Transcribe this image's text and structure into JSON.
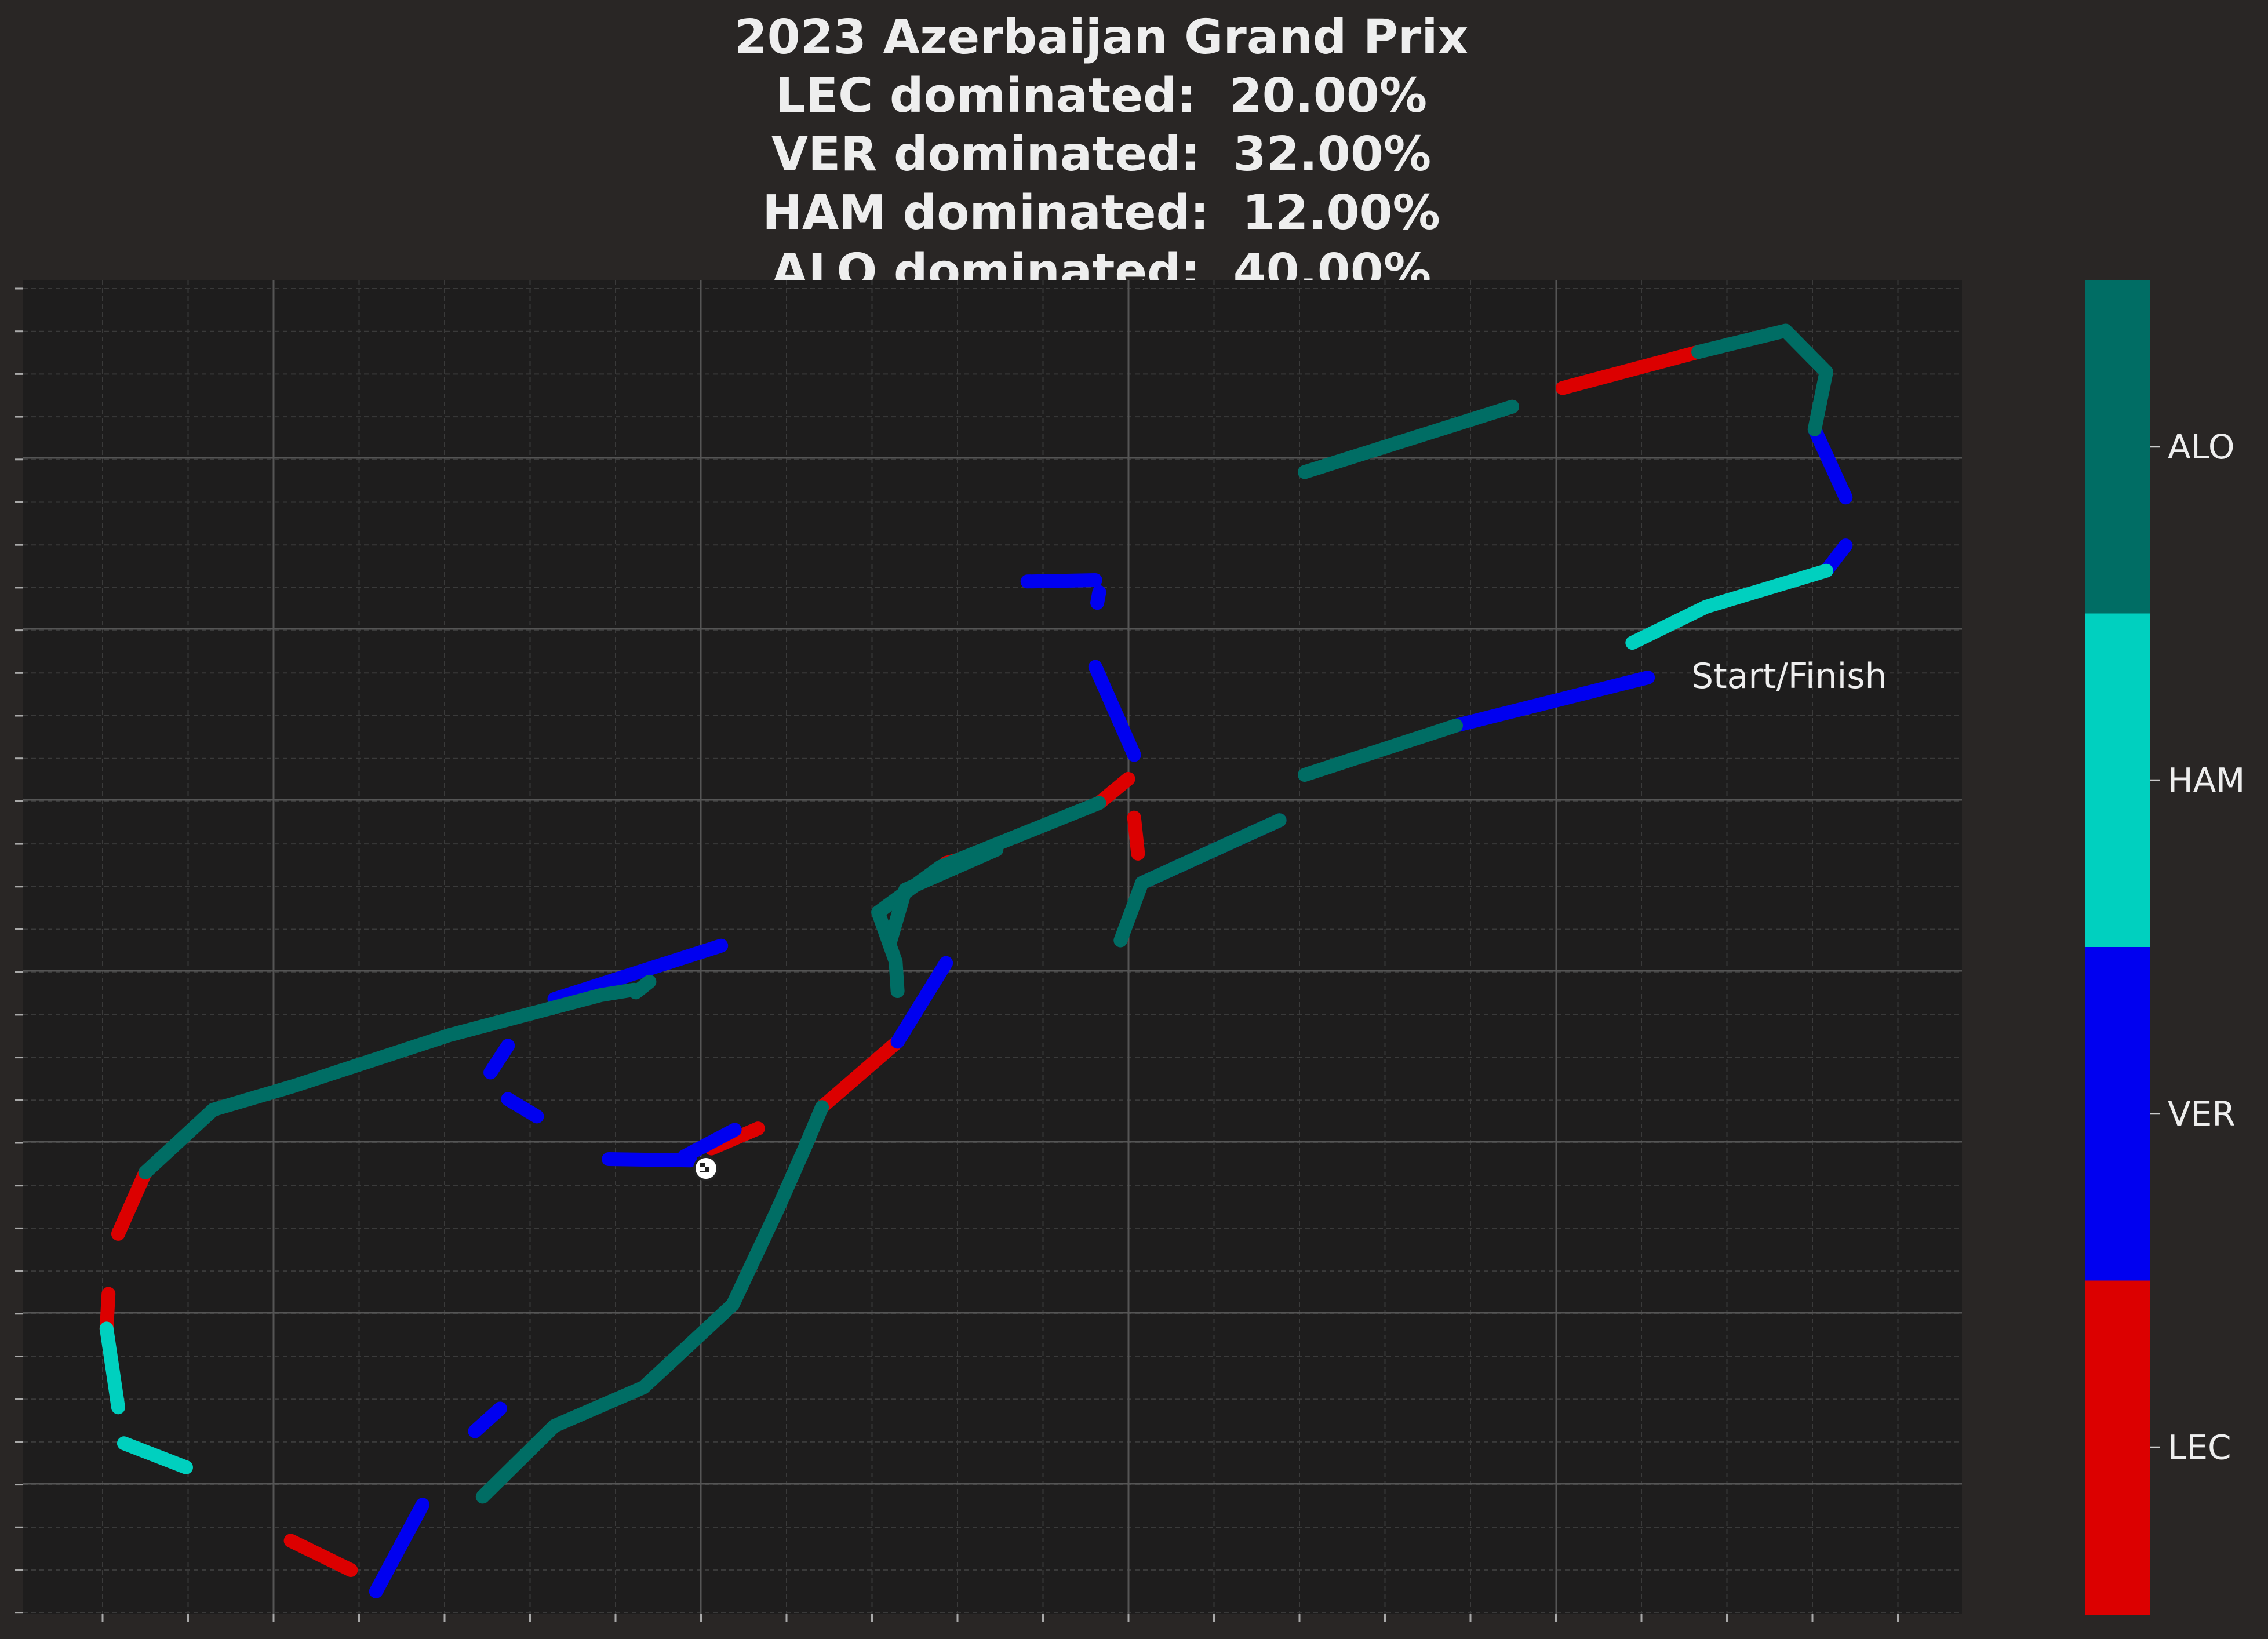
{
  "chart_data": {
    "type": "line",
    "title": [
      "2023 Azerbaijan Grand Prix",
      "LEC dominated:  20.00%",
      "VER dominated:  32.00%",
      "HAM dominated:  12.00%",
      "ALO dominated:  40.00%"
    ],
    "xlabel": "",
    "ylabel": "",
    "grid": true,
    "xlim": [
      0,
      1000
    ],
    "ylim": [
      0,
      1000
    ],
    "annotation": "Start/Finish",
    "legend": "colorbar-right",
    "colorbar": {
      "labels": [
        "ALO",
        "HAM",
        "VER",
        "LEC"
      ],
      "colors": [
        "#006d64",
        "#00d0bf",
        "#0000f0",
        "#dc0000"
      ]
    },
    "series": [
      {
        "name": "LEC",
        "color": "#dc0000",
        "segments": [
          [
            [
              864,
              946
            ],
            [
              794,
              919
            ]
          ],
          [
            [
              768,
              905
            ],
            [
              768,
              905
            ]
          ],
          [
            [
              575,
              570
            ],
            [
              573,
              597
            ]
          ],
          [
            [
              570,
              626
            ],
            [
              555,
              608
            ]
          ],
          [
            [
              502,
              573
            ],
            [
              476,
              563
            ]
          ],
          [
            [
              451,
              429
            ],
            [
              412,
              380
            ]
          ],
          [
            [
              379,
              364
            ],
            [
              355,
              349
            ]
          ],
          [
            [
              63,
              331
            ],
            [
              49,
              285
            ]
          ],
          [
            [
              44,
              240
            ],
            [
              43,
              214
            ]
          ],
          [
            [
              138,
              55
            ],
            [
              169,
              33
            ]
          ]
        ]
      },
      {
        "name": "VER",
        "color": "#0000f0",
        "segments": [
          [
            [
              924,
              888
            ],
            [
              940,
              837
            ]
          ],
          [
            [
              940,
              801
            ],
            [
              930,
              782
            ]
          ],
          [
            [
              838,
              702
            ],
            [
              739,
              666
            ]
          ],
          [
            [
              648,
              595
            ],
            [
              577,
              548
            ]
          ],
          [
            [
              573,
              644
            ],
            [
              553,
              710
            ]
          ],
          [
            [
              554,
              758
            ],
            [
              555,
              766
            ]
          ],
          [
            [
              553,
              775
            ],
            [
              518,
              774
            ]
          ],
          [
            [
              451,
              429
            ],
            [
              476,
              488
            ]
          ],
          [
            [
              360,
              501
            ],
            [
              274,
              461
            ]
          ],
          [
            [
              250,
              426
            ],
            [
              241,
              406
            ]
          ],
          [
            [
              250,
              386
            ],
            [
              265,
              373
            ]
          ],
          [
            [
              302,
              341
            ],
            [
              344,
              340
            ]
          ],
          [
            [
              367,
              363
            ],
            [
              341,
              343
            ]
          ],
          [
            [
              246,
              154
            ],
            [
              233,
              137
            ]
          ],
          [
            [
              206,
              82
            ],
            [
              182,
              17
            ]
          ]
        ]
      },
      {
        "name": "HAM",
        "color": "#00d0bf",
        "segments": [
          [
            [
              930,
              782
            ],
            [
              868,
              755
            ]
          ],
          [
            [
              868,
              755
            ],
            [
              830,
              728
            ]
          ],
          [
            [
              43,
              214
            ],
            [
              49,
              155
            ]
          ],
          [
            [
              52,
              128
            ],
            [
              84,
              110
            ]
          ]
        ]
      },
      {
        "name": "ALO",
        "color": "#006d64",
        "segments": [
          [
            [
              864,
              946
            ],
            [
              909,
              962
            ],
            [
              930,
              931
            ],
            [
              924,
              888
            ]
          ],
          [
            [
              739,
              666
            ],
            [
              661,
              629
            ]
          ],
          [
            [
              768,
              905
            ],
            [
              661,
              856
            ]
          ],
          [
            [
              648,
              595
            ],
            [
              577,
              548
            ],
            [
              566,
              505
            ]
          ],
          [
            [
              555,
              608
            ],
            [
              473,
              560
            ],
            [
              441,
              526
            ],
            [
              450,
              489
            ],
            [
              451,
              467
            ]
          ],
          [
            [
              502,
              573
            ],
            [
              455,
              543
            ],
            [
              447,
              503
            ]
          ],
          [
            [
              412,
              380
            ],
            [
              403,
              349
            ],
            [
              389,
              303
            ],
            [
              366,
              232
            ]
          ],
          [
            [
              366,
              232
            ],
            [
              320,
              170
            ],
            [
              274,
              141
            ],
            [
              237,
              88
            ]
          ],
          [
            [
              63,
              331
            ],
            [
              98,
              378
            ],
            [
              140,
              396
            ],
            [
              220,
              434
            ],
            [
              298,
              464
            ],
            [
              315,
              468
            ]
          ],
          [
            [
              323,
              474
            ],
            [
              316,
              466
            ]
          ]
        ]
      }
    ]
  }
}
